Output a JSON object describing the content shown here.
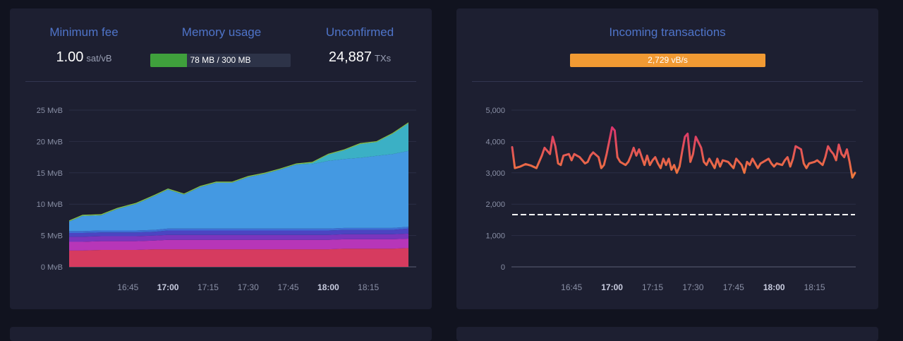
{
  "stats": {
    "min_fee": {
      "title": "Minimum fee",
      "value": "1.00",
      "unit": "sat/vB"
    },
    "memory": {
      "title": "Memory usage",
      "text": "78 MB / 300 MB",
      "used_fraction": 0.26,
      "fill_color": "#3fa03c"
    },
    "unconfirmed": {
      "title": "Unconfirmed",
      "value": "24,887",
      "unit": "TXs"
    }
  },
  "incoming": {
    "title": "Incoming transactions",
    "rate_text": "2,729 vB/s",
    "bar_color": "#f19a33"
  },
  "chart_data": [
    {
      "type": "area",
      "stacked": true,
      "x_tick_labels": [
        "16:45",
        "17:00",
        "17:15",
        "17:30",
        "17:45",
        "18:00",
        "18:15"
      ],
      "x_tick_bold": [
        "17:00",
        "18:00"
      ],
      "y_tick_labels": [
        "0 MvB",
        "5 MvB",
        "10 MvB",
        "15 MvB",
        "20 MvB",
        "25 MvB"
      ],
      "ylim": [
        0,
        25
      ],
      "grid": true,
      "x": [
        "16:23",
        "16:28",
        "16:35",
        "16:41",
        "16:48",
        "16:55",
        "17:00",
        "17:06",
        "17:12",
        "17:18",
        "17:24",
        "17:30",
        "17:36",
        "17:42",
        "17:48",
        "17:54",
        "18:00",
        "18:06",
        "18:12",
        "18:18",
        "18:24",
        "18:30"
      ],
      "series": [
        {
          "color": "#d63b5f",
          "values": [
            2.6,
            2.6,
            2.7,
            2.7,
            2.7,
            2.8,
            2.8,
            2.8,
            2.8,
            2.8,
            2.8,
            2.8,
            2.8,
            2.8,
            2.8,
            2.8,
            2.8,
            2.9,
            2.9,
            2.9,
            2.9,
            3.0
          ]
        },
        {
          "color": "#b736b8",
          "values": [
            1.4,
            1.4,
            1.4,
            1.4,
            1.4,
            1.4,
            1.5,
            1.5,
            1.5,
            1.5,
            1.5,
            1.5,
            1.5,
            1.5,
            1.5,
            1.5,
            1.5,
            1.5,
            1.5,
            1.5,
            1.5,
            1.5
          ]
        },
        {
          "color": "#7a35bd",
          "values": [
            0.8,
            0.8,
            0.8,
            0.8,
            0.8,
            0.8,
            0.8,
            0.8,
            0.8,
            0.8,
            0.8,
            0.8,
            0.8,
            0.8,
            0.8,
            0.8,
            0.8,
            0.8,
            0.8,
            0.8,
            0.8,
            0.8
          ]
        },
        {
          "color": "#4b45c2",
          "values": [
            0.6,
            0.6,
            0.6,
            0.6,
            0.6,
            0.6,
            0.7,
            0.7,
            0.7,
            0.7,
            0.7,
            0.7,
            0.7,
            0.7,
            0.7,
            0.7,
            0.7,
            0.7,
            0.7,
            0.7,
            0.7,
            0.8
          ]
        },
        {
          "color": "#3d6fd4",
          "values": [
            0.3,
            0.3,
            0.3,
            0.3,
            0.3,
            0.3,
            0.3,
            0.3,
            0.3,
            0.3,
            0.3,
            0.3,
            0.3,
            0.3,
            0.3,
            0.3,
            0.3,
            0.3,
            0.3,
            0.3,
            0.3,
            0.3
          ]
        },
        {
          "color": "#4499e2",
          "values": [
            1.5,
            2.4,
            2.4,
            3.4,
            4.2,
            5.4,
            6.2,
            5.4,
            6.6,
            7.3,
            7.3,
            8.2,
            8.7,
            9.4,
            10.2,
            10.3,
            10.8,
            11.0,
            11.2,
            11.5,
            11.8,
            12.1
          ]
        },
        {
          "color": "#3bb0c5",
          "values": [
            0.05,
            0.05,
            0.05,
            0.05,
            0.05,
            0.05,
            0.05,
            0.05,
            0.05,
            0.05,
            0.05,
            0.05,
            0.05,
            0.05,
            0.05,
            0.2,
            1.0,
            1.4,
            2.2,
            2.2,
            3.2,
            4.4
          ]
        },
        {
          "color": "#8bc34a",
          "values": [
            0.15,
            0.15,
            0.15,
            0.15,
            0.15,
            0.15,
            0.15,
            0.15,
            0.15,
            0.15,
            0.15,
            0.15,
            0.15,
            0.15,
            0.15,
            0.15,
            0.15,
            0.15,
            0.15,
            0.15,
            0.15,
            0.15
          ]
        }
      ]
    },
    {
      "type": "line",
      "x_tick_labels": [
        "16:45",
        "17:00",
        "17:15",
        "17:30",
        "17:45",
        "18:00",
        "18:15"
      ],
      "x_tick_bold": [
        "17:00",
        "18:00"
      ],
      "y_tick_labels": [
        "0",
        "1,000",
        "2,000",
        "3,000",
        "4,000",
        "5,000"
      ],
      "ylim": [
        0,
        5000
      ],
      "grid": true,
      "reference_line": 1667,
      "gradient_colors": [
        "#f07c3a",
        "#d8326e"
      ],
      "x": [
        "16:23",
        "16:24",
        "16:26",
        "16:28",
        "16:30",
        "16:32",
        "16:34",
        "16:35",
        "16:37",
        "16:38",
        "16:39",
        "16:40",
        "16:41",
        "16:42",
        "16:44",
        "16:45",
        "16:46",
        "16:47",
        "16:48",
        "16:50",
        "16:51",
        "16:52",
        "16:53",
        "16:55",
        "16:56",
        "16:57",
        "16:58",
        "17:00",
        "17:01",
        "17:02",
        "17:03",
        "17:04",
        "17:05",
        "17:06",
        "17:07",
        "17:08",
        "17:09",
        "17:10",
        "17:11",
        "17:12",
        "17:13",
        "17:14",
        "17:15",
        "17:16",
        "17:17",
        "17:18",
        "17:19",
        "17:20",
        "17:21",
        "17:22",
        "17:23",
        "17:24",
        "17:25",
        "17:26",
        "17:27",
        "17:28",
        "17:29",
        "17:30",
        "17:31",
        "17:33",
        "17:34",
        "17:35",
        "17:36",
        "17:38",
        "17:39",
        "17:40",
        "17:41",
        "17:43",
        "17:44",
        "17:45",
        "17:46",
        "17:48",
        "17:49",
        "17:50",
        "17:51",
        "17:52",
        "17:54",
        "17:55",
        "17:56",
        "17:58",
        "17:59",
        "18:00",
        "18:01",
        "18:03",
        "18:04",
        "18:05",
        "18:06",
        "18:07",
        "18:08",
        "18:10",
        "18:11",
        "18:12",
        "18:13",
        "18:15",
        "18:16",
        "18:18",
        "18:19",
        "18:20",
        "18:21",
        "18:22",
        "18:23",
        "18:24",
        "18:25",
        "18:26",
        "18:27",
        "18:28",
        "18:29",
        "18:30"
      ],
      "values": [
        3820,
        3150,
        3200,
        3280,
        3230,
        3150,
        3550,
        3800,
        3600,
        4150,
        3850,
        3300,
        3250,
        3550,
        3600,
        3400,
        3600,
        3550,
        3500,
        3300,
        3350,
        3550,
        3650,
        3500,
        3150,
        3250,
        3600,
        4450,
        4350,
        3500,
        3350,
        3300,
        3250,
        3350,
        3550,
        3800,
        3550,
        3750,
        3500,
        3250,
        3550,
        3250,
        3400,
        3500,
        3300,
        3150,
        3450,
        3250,
        3450,
        3100,
        3250,
        3000,
        3200,
        3700,
        4150,
        4250,
        3350,
        3600,
        4150,
        3800,
        3350,
        3250,
        3450,
        3150,
        3450,
        3200,
        3400,
        3350,
        3250,
        3150,
        3450,
        3250,
        3000,
        3350,
        3250,
        3450,
        3150,
        3300,
        3350,
        3450,
        3300,
        3200,
        3300,
        3250,
        3400,
        3500,
        3200,
        3450,
        3850,
        3750,
        3300,
        3150,
        3300,
        3350,
        3400,
        3250,
        3500,
        3850,
        3700,
        3600,
        3400,
        3900,
        3600,
        3500,
        3750,
        3350,
        2850,
        3000
      ]
    }
  ]
}
